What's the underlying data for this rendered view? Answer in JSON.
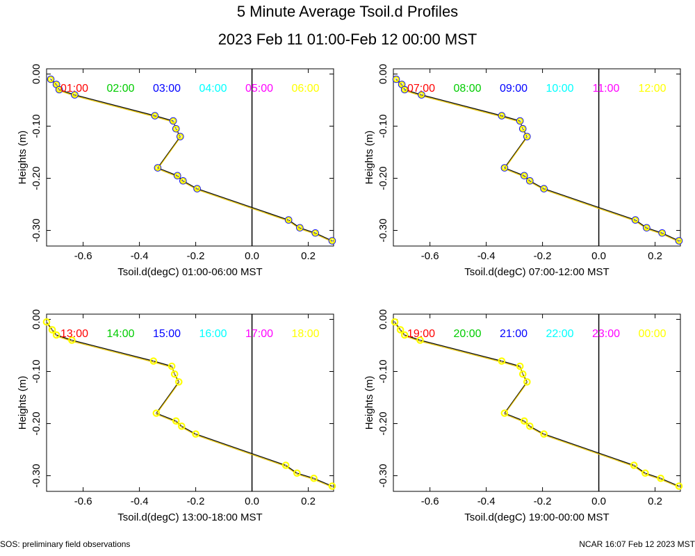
{
  "page": {
    "title": "5 Minute Average Tsoil.d Profiles",
    "subtitle": "2023 Feb 11 01:00-Feb 12 00:00 MST",
    "footer_left": "SOS: preliminary field observations",
    "footer_right": "NCAR 16:07 Feb 12 2023 MST"
  },
  "chart_data": [
    {
      "type": "line",
      "xlabel": "Tsoil.d(degC) 01:00-06:00 MST",
      "ylabel": "Heights (m)",
      "xlim": [
        -0.73,
        0.29
      ],
      "ylim": [
        -0.33,
        0.01
      ],
      "xticks": [
        -0.6,
        -0.4,
        -0.2,
        0.0,
        0.2
      ],
      "xtick_labels": [
        "-0.6",
        "-0.4",
        "-0.2",
        "0.0",
        "0.2"
      ],
      "yticks": [
        0.0,
        -0.1,
        -0.2,
        -0.3
      ],
      "ytick_labels": [
        "0.00",
        "-0.10",
        "-0.20",
        "-0.30"
      ],
      "reference_line_x": 0.0,
      "series_names": [
        "01:00",
        "02:00",
        "03:00",
        "04:00",
        "05:00",
        "06:00"
      ],
      "series_colors": [
        "#ff0000",
        "#00cc00",
        "#0000ff",
        "#00ffff",
        "#ff00ff",
        "#ffff00"
      ],
      "top_series_colors": [
        "#0000ff",
        "#ffff00"
      ],
      "heights": [
        -0.01,
        -0.02,
        -0.03,
        -0.04,
        -0.08,
        -0.09,
        -0.105,
        -0.12,
        -0.18,
        -0.195,
        -0.205,
        -0.22,
        -0.28,
        -0.295,
        -0.305,
        -0.32
      ],
      "temps": [
        -0.715,
        -0.695,
        -0.685,
        -0.63,
        -0.345,
        -0.28,
        -0.27,
        -0.255,
        -0.335,
        -0.265,
        -0.245,
        -0.195,
        0.13,
        0.17,
        0.225,
        0.285
      ]
    },
    {
      "type": "line",
      "xlabel": "Tsoil.d(degC) 07:00-12:00 MST",
      "ylabel": "Heights (m)",
      "xlim": [
        -0.73,
        0.29
      ],
      "ylim": [
        -0.33,
        0.01
      ],
      "xticks": [
        -0.6,
        -0.4,
        -0.2,
        0.0,
        0.2
      ],
      "xtick_labels": [
        "-0.6",
        "-0.4",
        "-0.2",
        "0.0",
        "0.2"
      ],
      "yticks": [
        0.0,
        -0.1,
        -0.2,
        -0.3
      ],
      "ytick_labels": [
        "0.00",
        "-0.10",
        "-0.20",
        "-0.30"
      ],
      "reference_line_x": 0.0,
      "series_names": [
        "07:00",
        "08:00",
        "09:00",
        "10:00",
        "11:00",
        "12:00"
      ],
      "series_colors": [
        "#ff0000",
        "#00cc00",
        "#0000ff",
        "#00ffff",
        "#ff00ff",
        "#ffff00"
      ],
      "top_series_colors": [
        "#0000ff",
        "#ffff00"
      ],
      "heights": [
        -0.01,
        -0.02,
        -0.03,
        -0.04,
        -0.08,
        -0.09,
        -0.105,
        -0.12,
        -0.18,
        -0.195,
        -0.205,
        -0.22,
        -0.28,
        -0.295,
        -0.305,
        -0.32
      ],
      "temps": [
        -0.72,
        -0.7,
        -0.69,
        -0.63,
        -0.345,
        -0.28,
        -0.27,
        -0.255,
        -0.335,
        -0.265,
        -0.245,
        -0.195,
        0.13,
        0.17,
        0.225,
        0.285
      ]
    },
    {
      "type": "line",
      "xlabel": "Tsoil.d(degC) 13:00-18:00 MST",
      "ylabel": "Heights (m)",
      "xlim": [
        -0.73,
        0.29
      ],
      "ylim": [
        -0.33,
        0.01
      ],
      "xticks": [
        -0.6,
        -0.4,
        -0.2,
        0.0,
        0.2
      ],
      "xtick_labels": [
        "-0.6",
        "-0.4",
        "-0.2",
        "0.0",
        "0.2"
      ],
      "yticks": [
        0.0,
        -0.1,
        -0.2,
        -0.3
      ],
      "ytick_labels": [
        "0.00",
        "-0.10",
        "-0.20",
        "-0.30"
      ],
      "reference_line_x": 0.0,
      "series_names": [
        "13:00",
        "14:00",
        "15:00",
        "16:00",
        "17:00",
        "18:00"
      ],
      "series_colors": [
        "#ff0000",
        "#00cc00",
        "#0000ff",
        "#00ffff",
        "#ff00ff",
        "#ffff00"
      ],
      "top_series_colors": [
        "#ffff00"
      ],
      "heights": [
        -0.005,
        -0.02,
        -0.03,
        -0.04,
        -0.08,
        -0.09,
        -0.105,
        -0.12,
        -0.18,
        -0.195,
        -0.205,
        -0.22,
        -0.28,
        -0.295,
        -0.305,
        -0.32
      ],
      "temps": [
        -0.73,
        -0.71,
        -0.695,
        -0.64,
        -0.35,
        -0.285,
        -0.275,
        -0.26,
        -0.34,
        -0.27,
        -0.25,
        -0.2,
        0.12,
        0.16,
        0.22,
        0.285
      ]
    },
    {
      "type": "line",
      "xlabel": "Tsoil.d(degC) 19:00-00:00 MST",
      "ylabel": "Heights (m)",
      "xlim": [
        -0.73,
        0.29
      ],
      "ylim": [
        -0.33,
        0.01
      ],
      "xticks": [
        -0.6,
        -0.4,
        -0.2,
        0.0,
        0.2
      ],
      "xtick_labels": [
        "-0.6",
        "-0.4",
        "-0.2",
        "0.0",
        "0.2"
      ],
      "yticks": [
        0.0,
        -0.1,
        -0.2,
        -0.3
      ],
      "ytick_labels": [
        "0.00",
        "-0.10",
        "-0.20",
        "-0.30"
      ],
      "reference_line_x": 0.0,
      "series_names": [
        "19:00",
        "20:00",
        "21:00",
        "22:00",
        "23:00",
        "00:00"
      ],
      "series_colors": [
        "#ff0000",
        "#00cc00",
        "#0000ff",
        "#00ffff",
        "#ff00ff",
        "#ffff00"
      ],
      "top_series_colors": [
        "#ffff00"
      ],
      "heights": [
        -0.005,
        -0.02,
        -0.03,
        -0.04,
        -0.08,
        -0.09,
        -0.105,
        -0.12,
        -0.18,
        -0.195,
        -0.205,
        -0.22,
        -0.28,
        -0.295,
        -0.305,
        -0.32
      ],
      "temps": [
        -0.725,
        -0.705,
        -0.69,
        -0.635,
        -0.345,
        -0.28,
        -0.27,
        -0.255,
        -0.335,
        -0.265,
        -0.245,
        -0.195,
        0.125,
        0.165,
        0.22,
        0.285
      ]
    }
  ]
}
